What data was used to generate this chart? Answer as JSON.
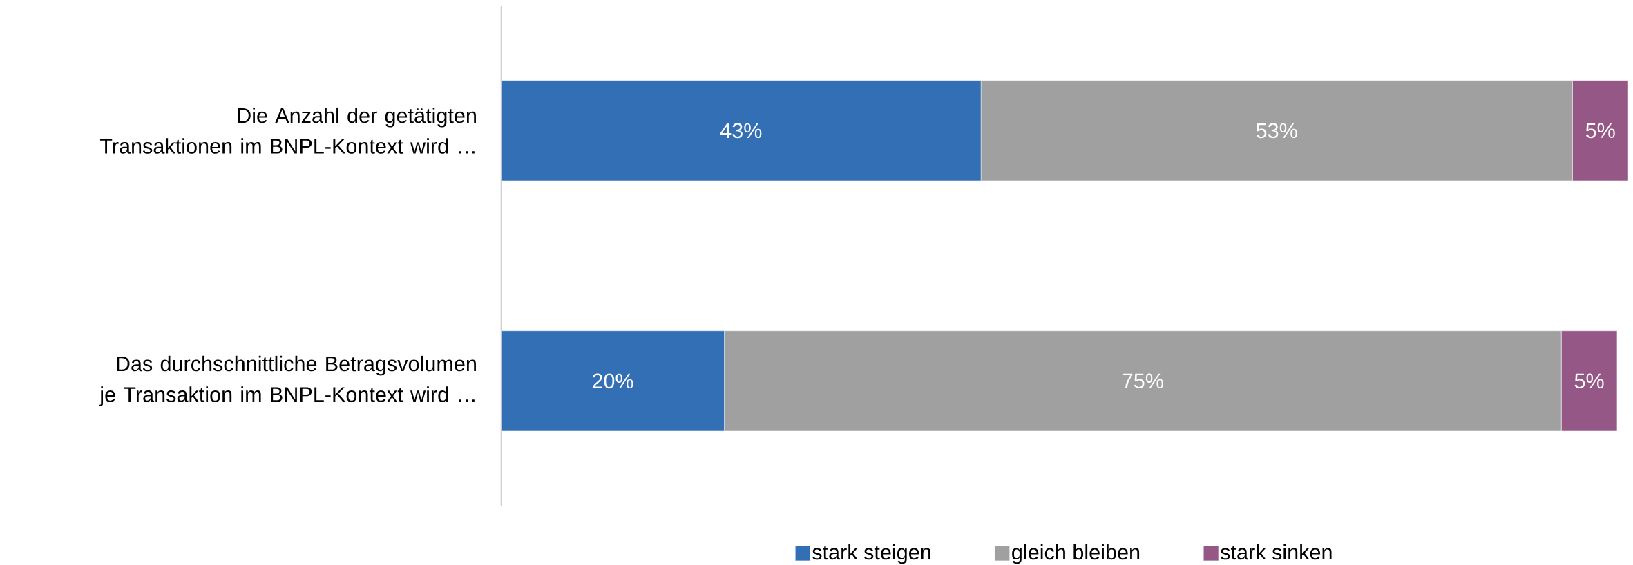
{
  "chart_data": {
    "type": "bar",
    "orientation": "horizontal",
    "stacked": true,
    "categories": [
      "Die Anzahl der getätigten Transaktionen im BNPL-Kontext wird …",
      "Das durchschnittliche Betragsvolumen je Transaktion im BNPL-Kontext wird …"
    ],
    "series": [
      {
        "name": "stark steigen",
        "color": "#336fb4",
        "values": [
          43,
          20
        ],
        "value_labels": [
          "43%",
          "20%"
        ]
      },
      {
        "name": "gleich bleiben",
        "color": "#a0a0a0",
        "values": [
          53,
          75
        ],
        "value_labels": [
          "53%",
          "75%"
        ]
      },
      {
        "name": "stark sinken",
        "color": "#955786",
        "values": [
          5,
          5
        ],
        "value_labels": [
          "5%",
          "5%"
        ]
      }
    ],
    "xlim": [
      0,
      101
    ],
    "tick_labels": "y",
    "grid": false,
    "legend": "bottom"
  }
}
